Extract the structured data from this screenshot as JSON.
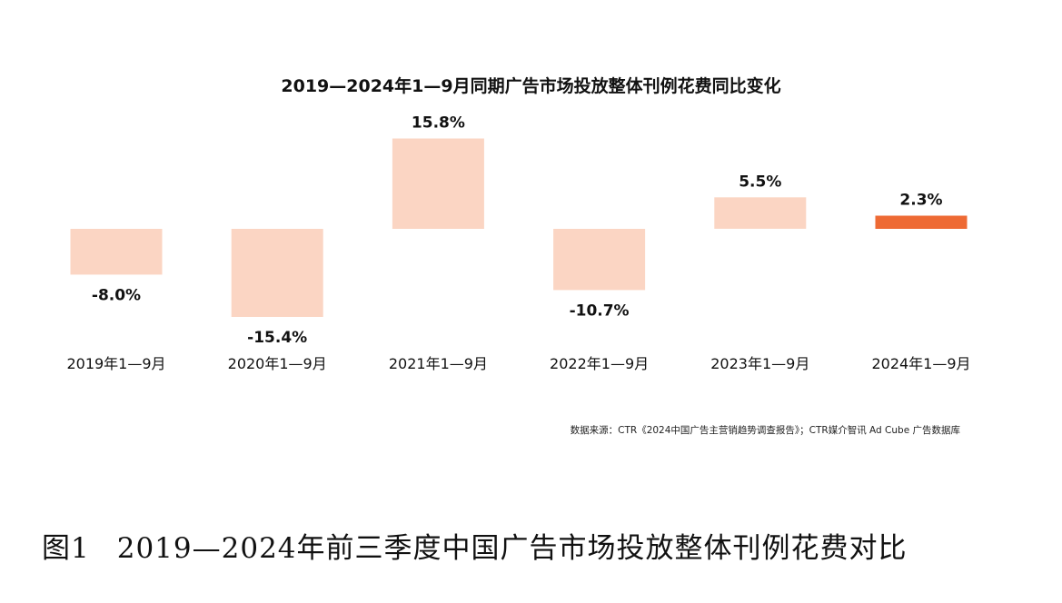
{
  "chart_data": {
    "type": "bar",
    "title": "2019—2024年1—9月同期广告市场投放整体刊例花费同比变化",
    "categories": [
      "2019年1—9月",
      "2020年1—9月",
      "2021年1—9月",
      "2022年1—9月",
      "2023年1—9月",
      "2024年1—9月"
    ],
    "values": [
      -8.0,
      -15.4,
      15.8,
      -10.7,
      5.5,
      2.3
    ],
    "value_labels": [
      "-8.0%",
      "-15.4%",
      "15.8%",
      "-10.7%",
      "5.5%",
      "2.3%"
    ],
    "unit": "%",
    "ylim": [
      -16,
      16
    ],
    "grid": false,
    "legend": "none",
    "colors": {
      "default_bar": "#fbd5c3",
      "highlight_bar": "#ee6a34"
    },
    "highlight_index": 5
  },
  "source_note": "数据来源：CTR《2024中国广告主营销趋势调查报告》；CTR媒介智讯 Ad Cube 广告数据库",
  "figure_caption": {
    "number": "图1",
    "text": "2019—2024年前三季度中国广告市场投放整体刊例花费对比"
  }
}
